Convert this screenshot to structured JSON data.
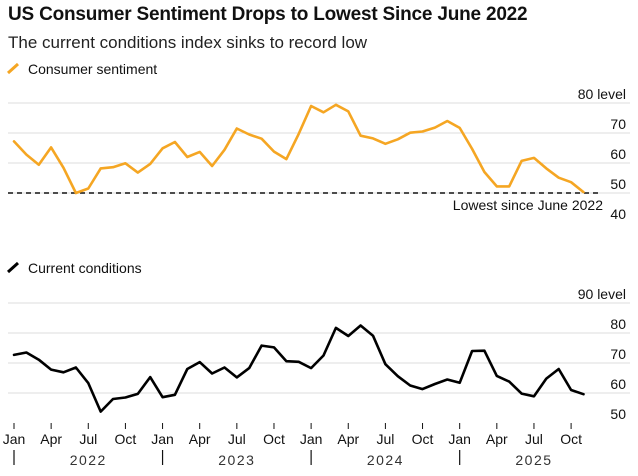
{
  "header": {
    "title": "US Consumer Sentiment Drops to Lowest Since June 2022",
    "subtitle": "The current conditions index sinks to record low"
  },
  "chart_data": [
    {
      "type": "line",
      "legend": "Consumer sentiment",
      "unit": "level",
      "color": "#f5a623",
      "ylim": [
        40,
        80
      ],
      "yticks": [
        40,
        50,
        60,
        70,
        80
      ],
      "reference_line": {
        "value": 50,
        "label": "Lowest since June 2022",
        "style": "dashed"
      },
      "x": [
        "2022-01",
        "2022-02",
        "2022-03",
        "2022-04",
        "2022-05",
        "2022-06",
        "2022-07",
        "2022-08",
        "2022-09",
        "2022-10",
        "2022-11",
        "2022-12",
        "2023-01",
        "2023-02",
        "2023-03",
        "2023-04",
        "2023-05",
        "2023-06",
        "2023-07",
        "2023-08",
        "2023-09",
        "2023-10",
        "2023-11",
        "2023-12",
        "2024-01",
        "2024-02",
        "2024-03",
        "2024-04",
        "2024-05",
        "2024-06",
        "2024-07",
        "2024-08",
        "2024-09",
        "2024-10",
        "2024-11",
        "2024-12",
        "2025-01",
        "2025-02",
        "2025-03",
        "2025-04",
        "2025-05",
        "2025-06",
        "2025-07",
        "2025-08",
        "2025-09",
        "2025-10",
        "2025-11"
      ],
      "values": [
        67.2,
        62.8,
        59.4,
        65.2,
        58.4,
        50.0,
        51.5,
        58.2,
        58.6,
        59.9,
        56.8,
        59.7,
        64.9,
        67.0,
        62.0,
        63.7,
        59.0,
        64.4,
        71.5,
        69.5,
        68.1,
        63.8,
        61.3,
        69.7,
        79.0,
        76.9,
        79.4,
        77.2,
        69.1,
        68.2,
        66.4,
        67.9,
        70.1,
        70.5,
        71.8,
        74.0,
        71.7,
        64.7,
        57.0,
        52.2,
        52.2,
        60.7,
        61.7,
        58.2,
        55.1,
        53.6,
        50.3
      ]
    },
    {
      "type": "line",
      "legend": "Current conditions",
      "unit": "level",
      "color": "#000000",
      "ylim": [
        50,
        90
      ],
      "yticks": [
        50,
        60,
        70,
        80,
        90
      ],
      "x": [
        "2022-01",
        "2022-02",
        "2022-03",
        "2022-04",
        "2022-05",
        "2022-06",
        "2022-07",
        "2022-08",
        "2022-09",
        "2022-10",
        "2022-11",
        "2022-12",
        "2023-01",
        "2023-02",
        "2023-03",
        "2023-04",
        "2023-05",
        "2023-06",
        "2023-07",
        "2023-08",
        "2023-09",
        "2023-10",
        "2023-11",
        "2023-12",
        "2024-01",
        "2024-02",
        "2024-03",
        "2024-04",
        "2024-05",
        "2024-06",
        "2024-07",
        "2024-08",
        "2024-09",
        "2024-10",
        "2024-11",
        "2024-12",
        "2025-01",
        "2025-02",
        "2025-03",
        "2025-04",
        "2025-05",
        "2025-06",
        "2025-07",
        "2025-08",
        "2025-09",
        "2025-10",
        "2025-11"
      ],
      "values": [
        72.7,
        73.5,
        71.1,
        67.8,
        66.9,
        68.5,
        63.3,
        53.8,
        58.0,
        58.5,
        59.7,
        65.3,
        58.6,
        59.4,
        68.0,
        70.3,
        66.5,
        68.5,
        65.2,
        68.3,
        75.8,
        75.2,
        70.6,
        70.4,
        68.3,
        72.5,
        81.7,
        79.0,
        82.5,
        79.1,
        69.6,
        65.6,
        62.5,
        61.3,
        63.0,
        64.5,
        63.4,
        74.0,
        74.1,
        65.7,
        63.8,
        59.8,
        58.9,
        64.8,
        68.0,
        61.0,
        59.6
      ]
    }
  ],
  "x_axis": {
    "tick_labels": [
      "Jan",
      "Apr",
      "Jul",
      "Oct",
      "Jan",
      "Apr",
      "Jul",
      "Oct",
      "Jan",
      "Apr",
      "Jul",
      "Oct",
      "Jan",
      "Apr",
      "Jul",
      "Oct"
    ],
    "years": [
      "2022",
      "2023",
      "2024",
      "2025"
    ]
  }
}
